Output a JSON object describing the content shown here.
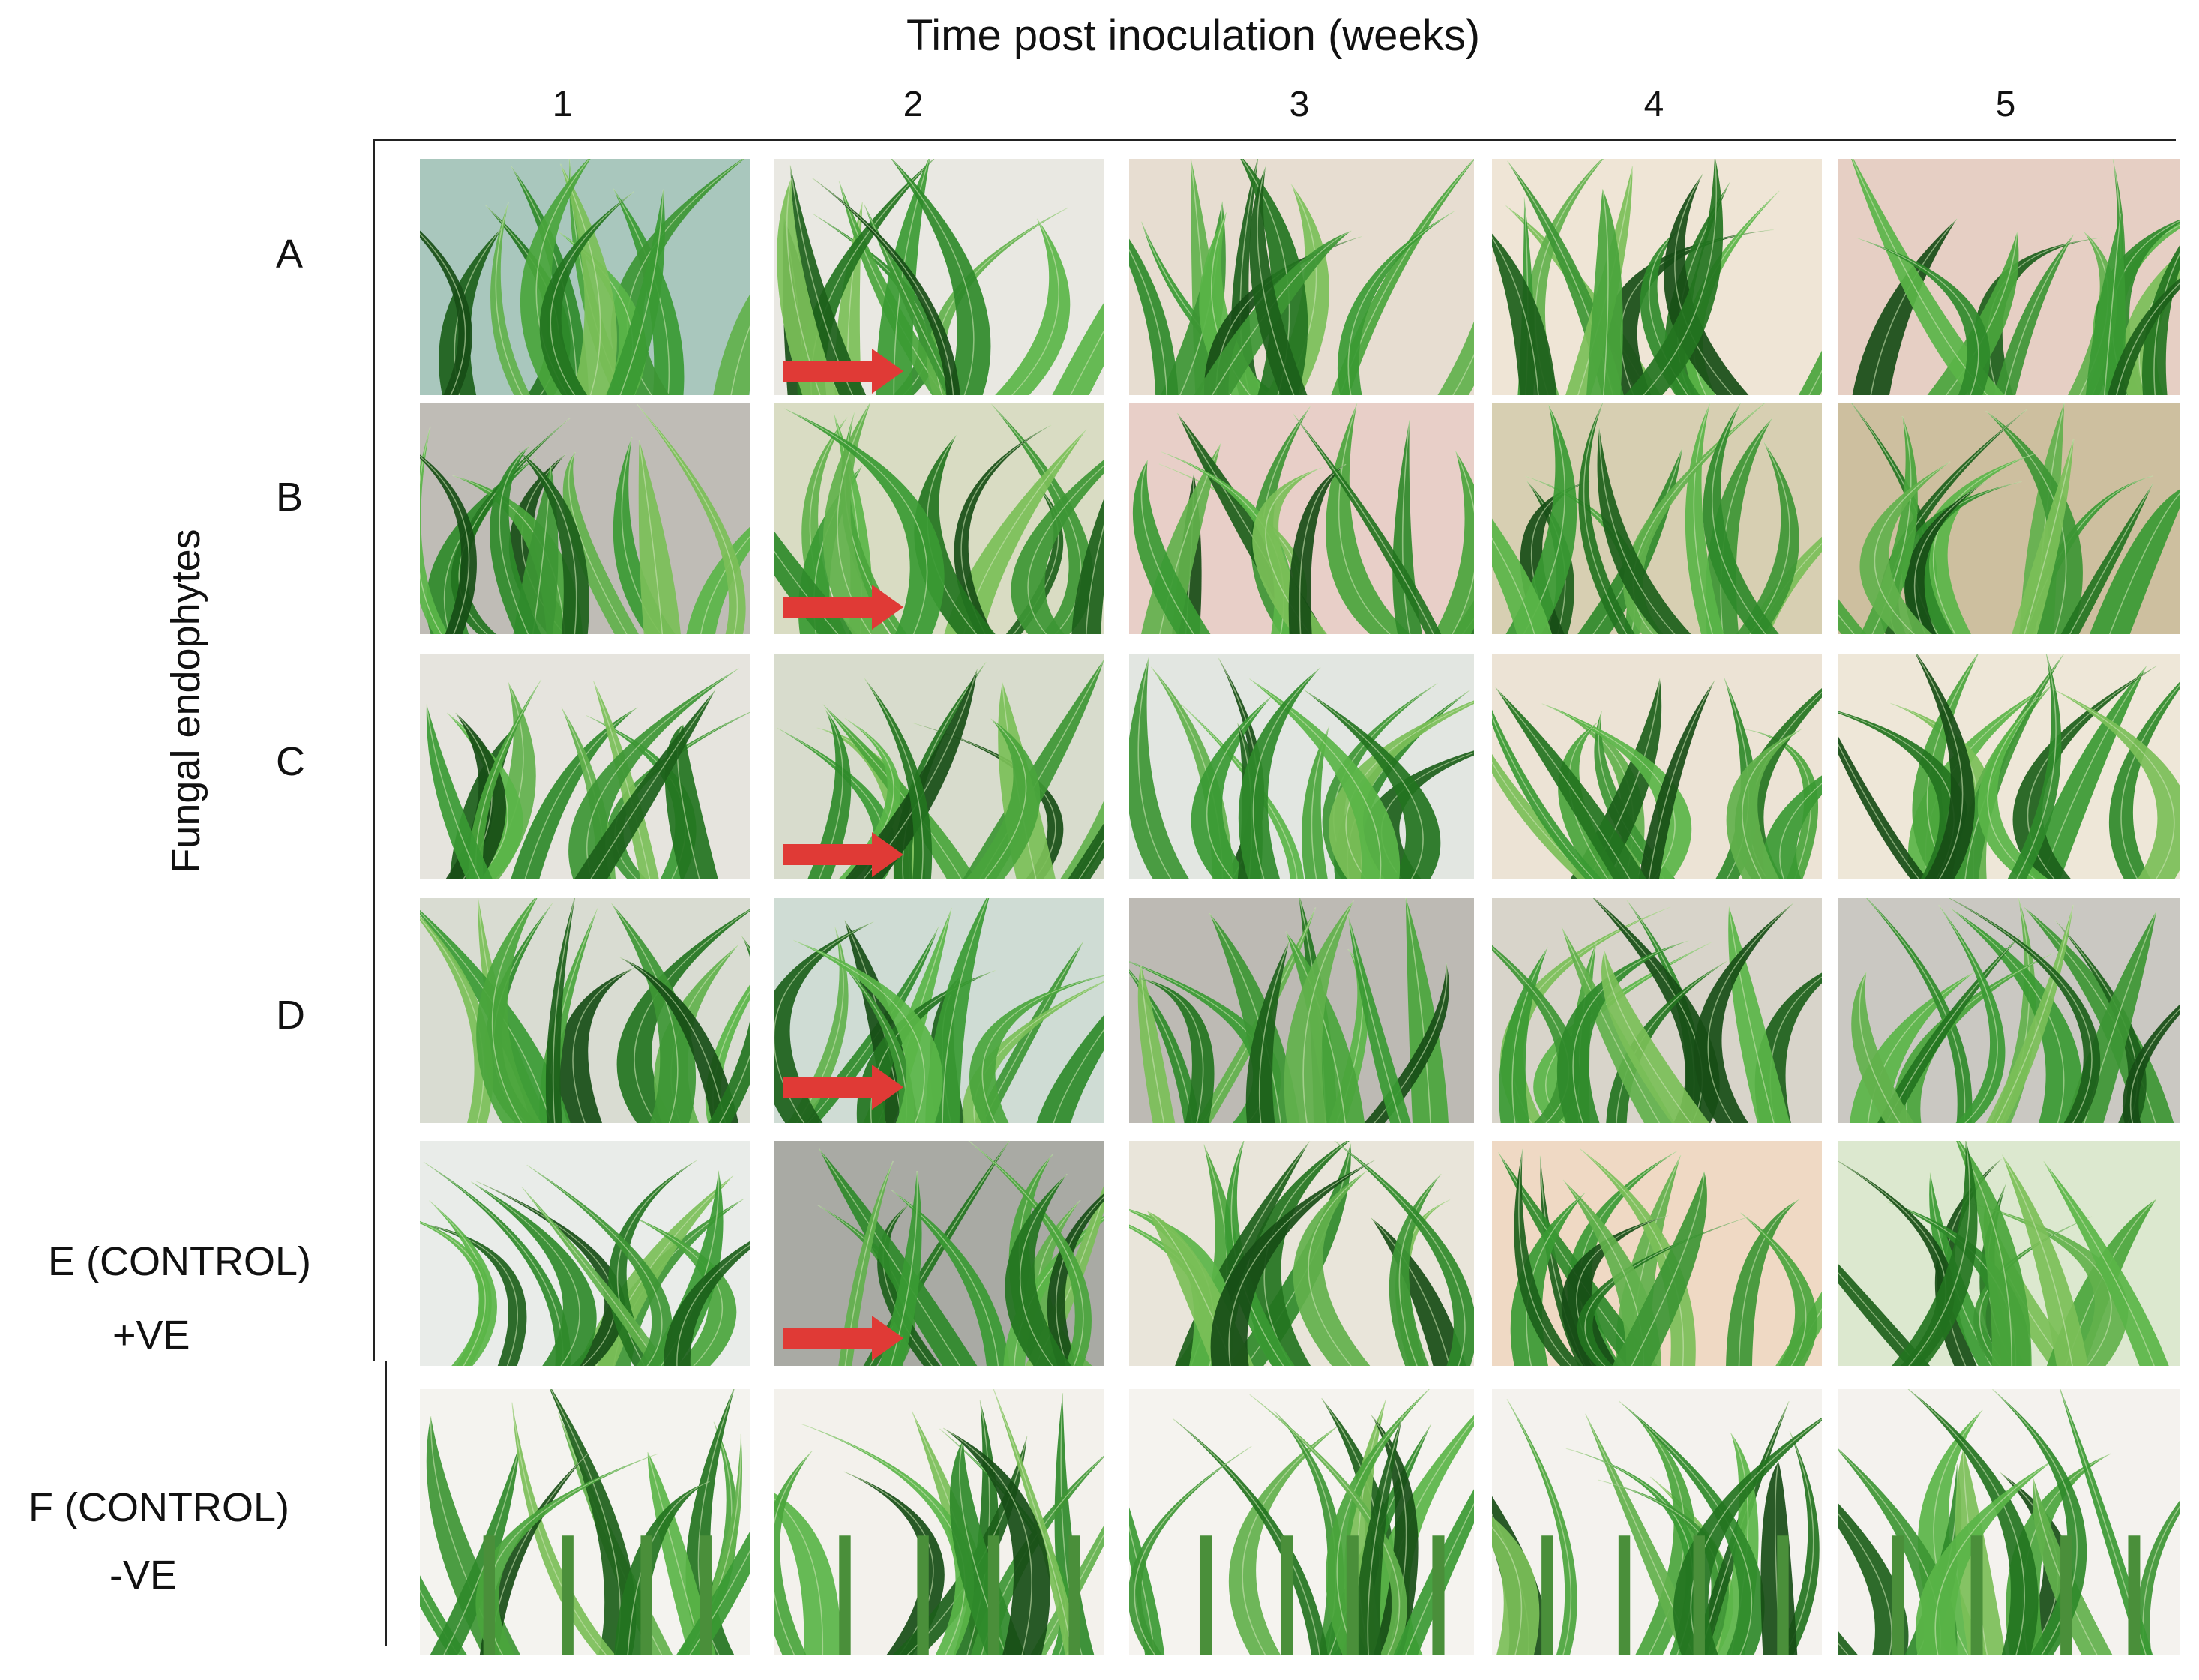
{
  "figure": {
    "title": "Time post inoculation (weeks)",
    "y_axis_label": "Fungal endophytes",
    "columns": [
      "1",
      "2",
      "3",
      "4",
      "5"
    ],
    "rows": [
      {
        "label": "A"
      },
      {
        "label": "B"
      },
      {
        "label": "C"
      },
      {
        "label": "D"
      },
      {
        "label": "E (CONTROL)",
        "sublabel": "+VE"
      },
      {
        "label": "F (CONTROL)",
        "sublabel": "-VE"
      }
    ],
    "photo_description": "maize plant leaves",
    "arrow_color": "#e03a36"
  }
}
